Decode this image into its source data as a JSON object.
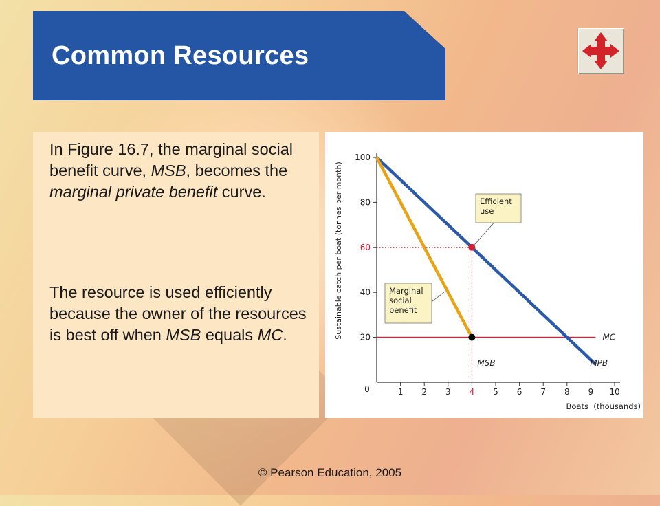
{
  "slide": {
    "title": "Common Resources",
    "footer": "© Pearson Education, 2005",
    "nav_icon": "four-arrows-move-icon",
    "colors": {
      "title_bg": "#2456a5",
      "text_panel_bg": "#fde6c4",
      "msb_line": "#e8a317",
      "mpb_line": "#2c5aa8",
      "mc_line": "#d0243a",
      "highlight": "#d0243a"
    }
  },
  "paragraphs": [
    {
      "segments": [
        {
          "text": "In Figure 16.7, the marginal social benefit curve, ",
          "italic": false
        },
        {
          "text": "MSB",
          "italic": true
        },
        {
          "text": ", becomes the ",
          "italic": false
        },
        {
          "text": "marginal private benefit",
          "italic": true
        },
        {
          "text": " curve.",
          "italic": false
        }
      ]
    },
    {
      "segments": [
        {
          "text": "The resource is used efficiently because the owner of the resources is best off when ",
          "italic": false
        },
        {
          "text": "MSB",
          "italic": true
        },
        {
          "text": " equals ",
          "italic": false
        },
        {
          "text": "MC",
          "italic": true
        },
        {
          "text": ".",
          "italic": false
        }
      ]
    }
  ],
  "chart_data": {
    "type": "line",
    "xlabel": "Boats",
    "xunit": "(thousands)",
    "ylabel": "Sustainable catch per boat (tonnes per month)",
    "xlim": [
      0,
      10
    ],
    "ylim": [
      0,
      100
    ],
    "x_ticks": [
      "1",
      "2",
      "3",
      "4",
      "5",
      "6",
      "7",
      "8",
      "9",
      "10"
    ],
    "y_ticks": [
      "20",
      "40",
      "60",
      "80",
      "100"
    ],
    "origin_label": "0",
    "highlight_x_tick": "4",
    "highlight_y_tick": "60",
    "series": [
      {
        "name": "MSB",
        "color": "#e8a317",
        "points": [
          [
            0,
            100
          ],
          [
            4,
            20
          ]
        ]
      },
      {
        "name": "MPB",
        "color": "#2c5aa8",
        "points": [
          [
            0,
            100
          ],
          [
            9.2,
            8
          ]
        ]
      },
      {
        "name": "MC",
        "color": "#d0243a",
        "points": [
          [
            0,
            20
          ],
          [
            9.2,
            20
          ]
        ]
      }
    ],
    "markers": [
      {
        "x": 4,
        "y": 60,
        "color": "#d0243a"
      },
      {
        "x": 4,
        "y": 20,
        "color": "#000000"
      }
    ],
    "guides": [
      {
        "from": [
          0,
          60
        ],
        "to": [
          4,
          60
        ]
      },
      {
        "from": [
          4,
          60
        ],
        "to": [
          4,
          0
        ]
      }
    ],
    "annotations": [
      {
        "text": [
          "Efficient",
          "use"
        ],
        "anchor": [
          4,
          60
        ]
      },
      {
        "text": [
          "Marginal",
          "social",
          "benefit"
        ],
        "anchor": [
          3,
          40
        ]
      }
    ],
    "line_labels": [
      "MSB",
      "MPB",
      "MC"
    ]
  }
}
